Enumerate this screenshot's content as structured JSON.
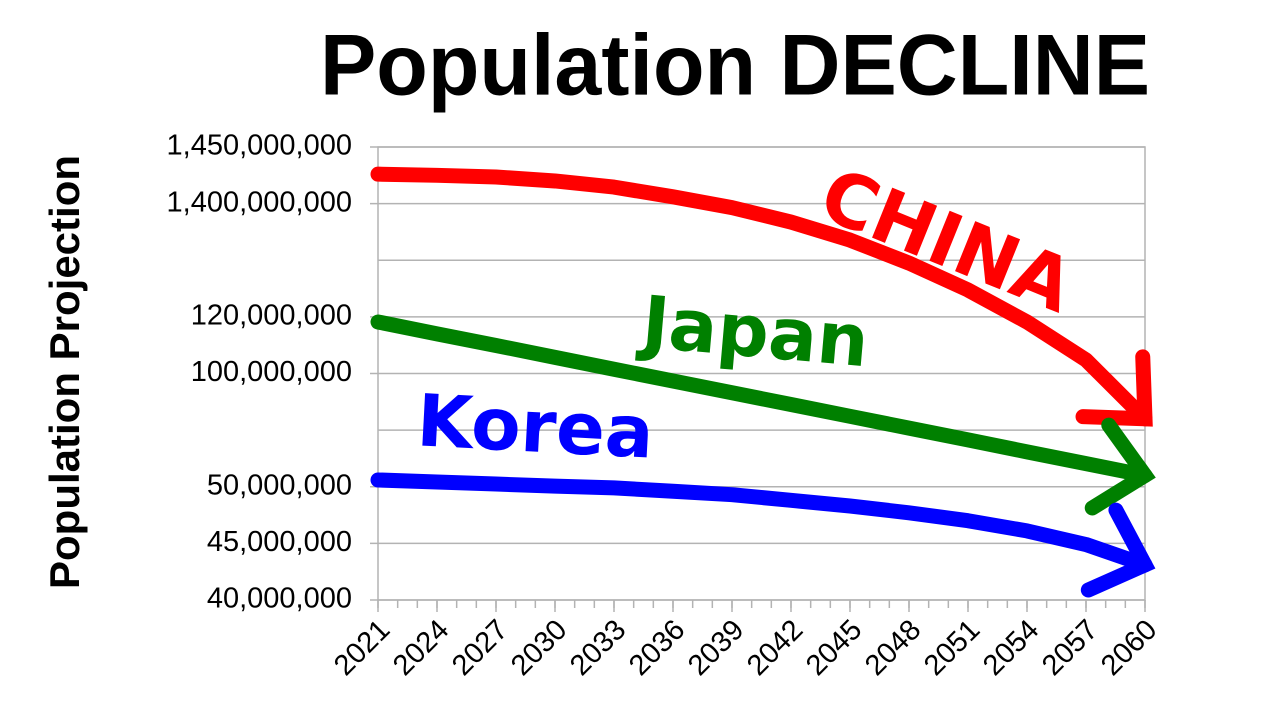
{
  "chart_data": {
    "type": "line",
    "title": "Population DECLINE",
    "y_label": "Population Projection",
    "x": [
      2021,
      2024,
      2027,
      2030,
      2033,
      2036,
      2039,
      2042,
      2045,
      2048,
      2051,
      2054,
      2057,
      2060
    ],
    "xlim": [
      2021,
      2060
    ],
    "xticks": [
      2021,
      2024,
      2027,
      2030,
      2033,
      2036,
      2039,
      2042,
      2045,
      2048,
      2051,
      2054,
      2057,
      2060
    ],
    "yticks": [
      {
        "value": 40000000,
        "label": "40,000,000"
      },
      {
        "value": 45000000,
        "label": "45,000,000"
      },
      {
        "value": 50000000,
        "label": "50,000,000"
      },
      {
        "value": 100000000,
        "label": "100,000,000"
      },
      {
        "value": 120000000,
        "label": "120,000,000"
      },
      {
        "value": 1400000000,
        "label": "1,400,000,000"
      },
      {
        "value": 1450000000,
        "label": "1,450,000,000"
      }
    ],
    "grid": true,
    "series": [
      {
        "name": "CHINA",
        "color": "#ff0000",
        "values": [
          1426000000,
          1425000000,
          1423500000,
          1420000000,
          1414600000,
          1406000000,
          1355000000,
          1192000000,
          988000000,
          728000000,
          424000000,
          118200000,
          104800000,
          80000000
        ]
      },
      {
        "name": "Japan",
        "color": "#008000",
        "values": [
          118200000,
          114000000,
          109900000,
          105700000,
          101500000,
          96700000,
          91500000,
          86300000,
          81100000,
          75900000,
          70700000,
          65400000,
          60200000,
          55000000
        ]
      },
      {
        "name": "Korea",
        "color": "#0000ff",
        "values": [
          53000000,
          52100000,
          51200000,
          50300000,
          49900000,
          49600000,
          49300000,
          48800000,
          48300000,
          47700000,
          47000000,
          46100000,
          44900000,
          43100000
        ]
      }
    ]
  }
}
